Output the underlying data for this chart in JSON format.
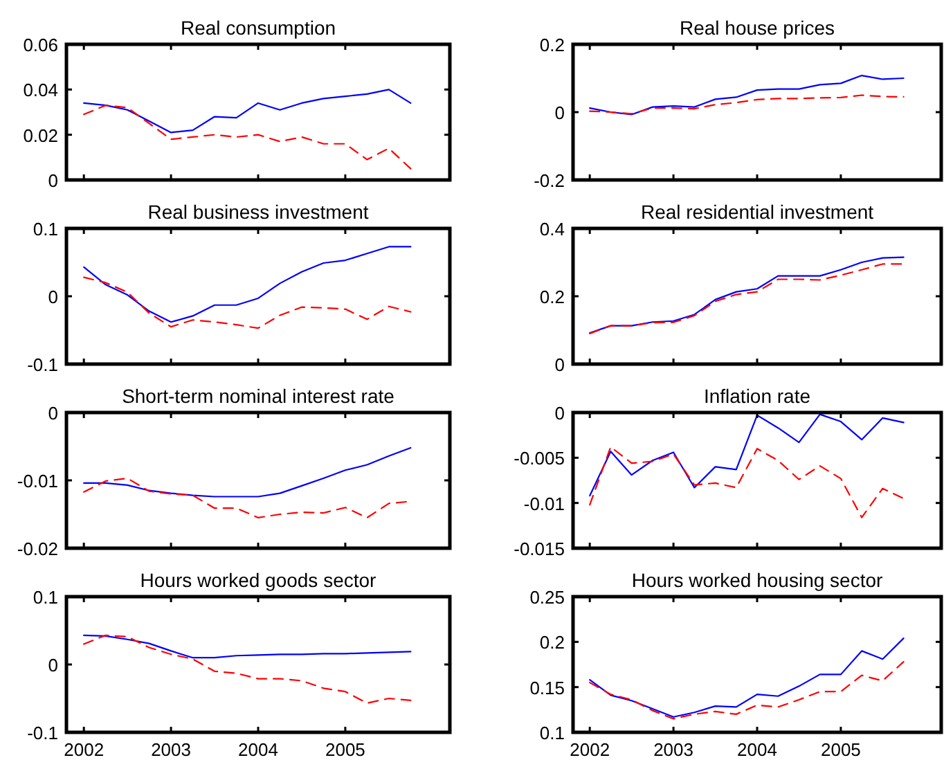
{
  "chart_data": [
    {
      "type": "line",
      "title": "Real consumption",
      "x": [
        2002,
        2002.25,
        2002.5,
        2002.75,
        2003,
        2003.25,
        2003.5,
        2003.75,
        2004,
        2004.25,
        2004.5,
        2004.75,
        2005,
        2005.25,
        2005.5,
        2005.75
      ],
      "xlim": [
        2001.8,
        2006.2
      ],
      "xticks": [
        2002,
        2003,
        2004,
        2005
      ],
      "ylim": [
        0,
        0.06
      ],
      "yticks": [
        0,
        0.02,
        0.04,
        0.06
      ],
      "tick_labels": "y",
      "series": [
        {
          "color": "#0000ff",
          "line_style": "solid",
          "values": [
            0.034,
            0.033,
            0.031,
            0.026,
            0.021,
            0.022,
            0.028,
            0.0275,
            0.034,
            0.031,
            0.034,
            0.036,
            0.037,
            0.038,
            0.04,
            0.034
          ]
        },
        {
          "color": "#ff0000",
          "line_style": "dashed",
          "values": [
            0.029,
            0.033,
            0.032,
            0.025,
            0.018,
            0.019,
            0.02,
            0.019,
            0.02,
            0.017,
            0.019,
            0.016,
            0.016,
            0.009,
            0.014,
            0.005
          ]
        }
      ]
    },
    {
      "type": "line",
      "title": "Real house prices",
      "x": [
        2002,
        2002.25,
        2002.5,
        2002.75,
        2003,
        2003.25,
        2003.5,
        2003.75,
        2004,
        2004.25,
        2004.5,
        2004.75,
        2005,
        2005.25,
        2005.5,
        2005.75
      ],
      "xlim": [
        2001.8,
        2006.2
      ],
      "xticks": [
        2002,
        2003,
        2004,
        2005
      ],
      "ylim": [
        -0.2,
        0.2
      ],
      "yticks": [
        -0.2,
        0,
        0.2
      ],
      "tick_labels": "y",
      "series": [
        {
          "color": "#0000ff",
          "line_style": "solid",
          "values": [
            0.012,
            0.0,
            -0.007,
            0.015,
            0.018,
            0.015,
            0.038,
            0.044,
            0.065,
            0.068,
            0.068,
            0.081,
            0.085,
            0.108,
            0.097,
            0.1
          ]
        },
        {
          "color": "#ff0000",
          "line_style": "dashed",
          "values": [
            0.003,
            0.0,
            -0.005,
            0.012,
            0.012,
            0.01,
            0.022,
            0.028,
            0.037,
            0.04,
            0.04,
            0.042,
            0.043,
            0.05,
            0.046,
            0.045
          ]
        }
      ]
    },
    {
      "type": "line",
      "title": "Real business investment",
      "x": [
        2002,
        2002.25,
        2002.5,
        2002.75,
        2003,
        2003.25,
        2003.5,
        2003.75,
        2004,
        2004.25,
        2004.5,
        2004.75,
        2005,
        2005.25,
        2005.5,
        2005.75
      ],
      "xlim": [
        2001.8,
        2006.2
      ],
      "xticks": [
        2002,
        2003,
        2004,
        2005
      ],
      "ylim": [
        -0.1,
        0.1
      ],
      "yticks": [
        -0.1,
        0,
        0.1
      ],
      "tick_labels": "y",
      "series": [
        {
          "color": "#0000ff",
          "line_style": "solid",
          "values": [
            0.043,
            0.017,
            0.002,
            -0.022,
            -0.038,
            -0.029,
            -0.013,
            -0.013,
            -0.003,
            0.019,
            0.036,
            0.049,
            0.053,
            0.063,
            0.073,
            0.073
          ]
        },
        {
          "color": "#ff0000",
          "line_style": "dashed",
          "values": [
            0.028,
            0.02,
            0.006,
            -0.025,
            -0.045,
            -0.035,
            -0.038,
            -0.042,
            -0.047,
            -0.028,
            -0.016,
            -0.017,
            -0.019,
            -0.034,
            -0.015,
            -0.023
          ]
        }
      ]
    },
    {
      "type": "line",
      "title": "Real residential investment",
      "x": [
        2002,
        2002.25,
        2002.5,
        2002.75,
        2003,
        2003.25,
        2003.5,
        2003.75,
        2004,
        2004.25,
        2004.5,
        2004.75,
        2005,
        2005.25,
        2005.5,
        2005.75
      ],
      "xlim": [
        2001.8,
        2006.2
      ],
      "xticks": [
        2002,
        2003,
        2004,
        2005
      ],
      "ylim": [
        0,
        0.4
      ],
      "yticks": [
        0,
        0.2,
        0.4
      ],
      "tick_labels": "y",
      "series": [
        {
          "color": "#0000ff",
          "line_style": "solid",
          "values": [
            0.092,
            0.113,
            0.113,
            0.124,
            0.127,
            0.146,
            0.19,
            0.213,
            0.222,
            0.26,
            0.26,
            0.26,
            0.278,
            0.3,
            0.313,
            0.315
          ]
        },
        {
          "color": "#ff0000",
          "line_style": "dashed",
          "values": [
            0.09,
            0.113,
            0.113,
            0.122,
            0.123,
            0.143,
            0.185,
            0.205,
            0.213,
            0.25,
            0.25,
            0.248,
            0.262,
            0.278,
            0.295,
            0.295
          ]
        }
      ]
    },
    {
      "type": "line",
      "title": "Short-term nominal interest rate",
      "x": [
        2002,
        2002.25,
        2002.5,
        2002.75,
        2003,
        2003.25,
        2003.5,
        2003.75,
        2004,
        2004.25,
        2004.5,
        2004.75,
        2005,
        2005.25,
        2005.5,
        2005.75
      ],
      "xlim": [
        2001.8,
        2006.2
      ],
      "xticks": [
        2002,
        2003,
        2004,
        2005
      ],
      "ylim": [
        -0.02,
        0
      ],
      "yticks": [
        -0.02,
        -0.01,
        0
      ],
      "tick_labels": "y",
      "series": [
        {
          "color": "#0000ff",
          "line_style": "solid",
          "values": [
            -0.0104,
            -0.0104,
            -0.0107,
            -0.0115,
            -0.0119,
            -0.0122,
            -0.0124,
            -0.0124,
            -0.0124,
            -0.0119,
            -0.0108,
            -0.0097,
            -0.0085,
            -0.0077,
            -0.0064,
            -0.0052
          ]
        },
        {
          "color": "#ff0000",
          "line_style": "dashed",
          "values": [
            -0.0117,
            -0.0101,
            -0.0097,
            -0.0116,
            -0.012,
            -0.0122,
            -0.0141,
            -0.0141,
            -0.0155,
            -0.015,
            -0.0147,
            -0.0148,
            -0.014,
            -0.0155,
            -0.0134,
            -0.0131
          ]
        }
      ]
    },
    {
      "type": "line",
      "title": "Inflation rate",
      "x": [
        2002,
        2002.25,
        2002.5,
        2002.75,
        2003,
        2003.25,
        2003.5,
        2003.75,
        2004,
        2004.25,
        2004.5,
        2004.75,
        2005,
        2005.25,
        2005.5,
        2005.75
      ],
      "xlim": [
        2001.8,
        2006.2
      ],
      "xticks": [
        2002,
        2003,
        2004,
        2005
      ],
      "ylim": [
        -0.015,
        0
      ],
      "yticks": [
        -0.015,
        -0.01,
        -0.005,
        0
      ],
      "tick_labels": "y",
      "series": [
        {
          "color": "#0000ff",
          "line_style": "solid",
          "values": [
            -0.0092,
            -0.0043,
            -0.0069,
            -0.0053,
            -0.0044,
            -0.0083,
            -0.006,
            -0.0063,
            -0.0003,
            -0.0017,
            -0.0033,
            -0.0002,
            -0.001,
            -0.003,
            -0.0006,
            -0.0011
          ]
        },
        {
          "color": "#ff0000",
          "line_style": "dashed",
          "values": [
            -0.0102,
            -0.0038,
            -0.0056,
            -0.0054,
            -0.0046,
            -0.008,
            -0.0078,
            -0.0083,
            -0.004,
            -0.0053,
            -0.0074,
            -0.0059,
            -0.0073,
            -0.0116,
            -0.0084,
            -0.0095
          ]
        }
      ]
    },
    {
      "type": "line",
      "title": "Hours worked goods sector",
      "x": [
        2002,
        2002.25,
        2002.5,
        2002.75,
        2003,
        2003.25,
        2003.5,
        2003.75,
        2004,
        2004.25,
        2004.5,
        2004.75,
        2005,
        2005.25,
        2005.5,
        2005.75
      ],
      "xlim": [
        2001.8,
        2006.2
      ],
      "xticks": [
        2002,
        2003,
        2004,
        2005
      ],
      "ylim": [
        -0.1,
        0.1
      ],
      "yticks": [
        -0.1,
        0,
        0.1
      ],
      "series": [
        {
          "color": "#0000ff",
          "line_style": "solid",
          "values": [
            0.043,
            0.042,
            0.037,
            0.031,
            0.02,
            0.01,
            0.01,
            0.013,
            0.014,
            0.015,
            0.015,
            0.016,
            0.016,
            0.017,
            0.018,
            0.019
          ]
        },
        {
          "color": "#ff0000",
          "line_style": "dashed",
          "values": [
            0.03,
            0.043,
            0.041,
            0.025,
            0.015,
            0.008,
            -0.01,
            -0.013,
            -0.021,
            -0.021,
            -0.024,
            -0.035,
            -0.04,
            -0.057,
            -0.05,
            -0.053
          ]
        }
      ]
    },
    {
      "type": "line",
      "title": "Hours worked housing sector",
      "x": [
        2002,
        2002.25,
        2002.5,
        2002.75,
        2003,
        2003.25,
        2003.5,
        2003.75,
        2004,
        2004.25,
        2004.5,
        2004.75,
        2005,
        2005.25,
        2005.5,
        2005.75
      ],
      "xlim": [
        2001.8,
        2006.2
      ],
      "xticks": [
        2002,
        2003,
        2004,
        2005
      ],
      "ylim": [
        0.1,
        0.25
      ],
      "yticks": [
        0.1,
        0.15,
        0.2,
        0.25
      ],
      "series": [
        {
          "color": "#0000ff",
          "line_style": "solid",
          "values": [
            0.158,
            0.141,
            0.135,
            0.126,
            0.117,
            0.122,
            0.129,
            0.128,
            0.142,
            0.14,
            0.151,
            0.164,
            0.164,
            0.19,
            0.181,
            0.204
          ]
        },
        {
          "color": "#ff0000",
          "line_style": "dashed",
          "values": [
            0.155,
            0.142,
            0.136,
            0.124,
            0.115,
            0.12,
            0.123,
            0.12,
            0.13,
            0.128,
            0.136,
            0.145,
            0.145,
            0.163,
            0.157,
            0.178
          ]
        }
      ]
    }
  ]
}
